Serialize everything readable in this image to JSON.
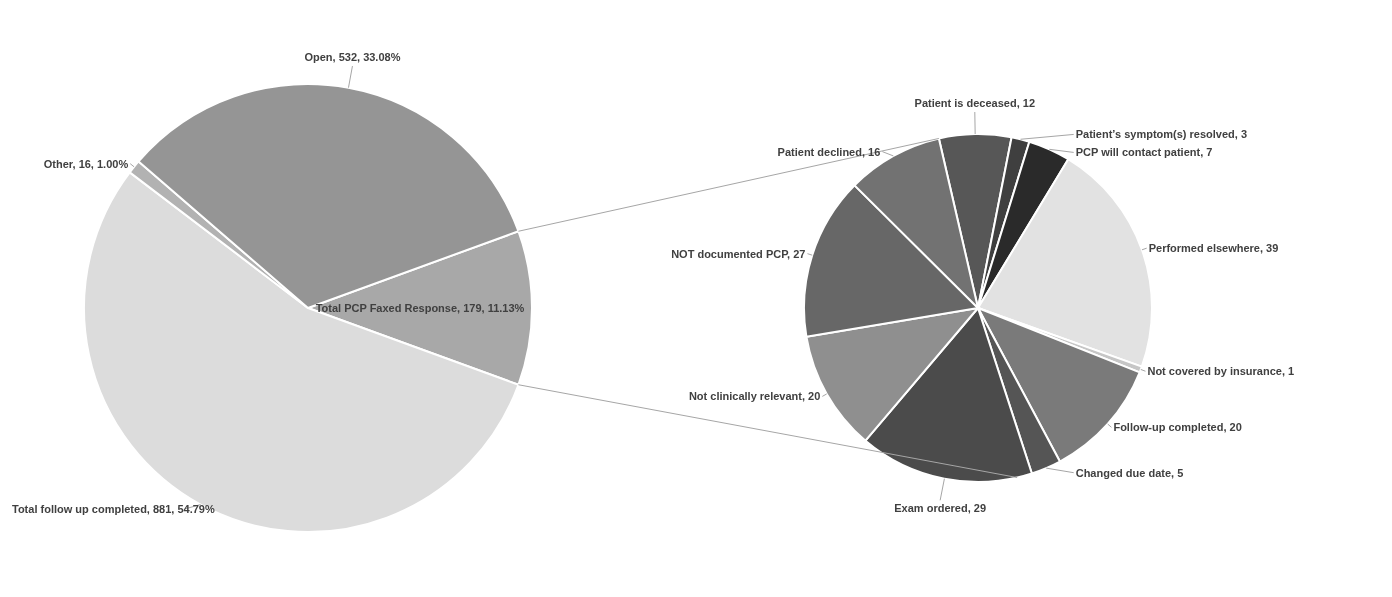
{
  "chart_data": [
    {
      "type": "pie",
      "categories": [
        "Total PCP Faxed Response",
        "Total follow up completed",
        "Other",
        "Open"
      ],
      "values": [
        179,
        881,
        16,
        532
      ],
      "colors": [
        "#a8a8a8",
        "#dcdcdc",
        "#b2b2b2",
        "#959595"
      ],
      "value_labels": [
        "179, 11.13%",
        "881, 54.79%",
        "16, 1.00%",
        "532, 33.08%"
      ]
    },
    {
      "type": "pie",
      "categories": [
        "Patient is deceased",
        "Patient’s symptom(s) resolved",
        "PCP will contact patient",
        "Performed elsewhere",
        "Not covered by insurance",
        "Follow-up completed",
        "Changed due date",
        "Exam ordered",
        "Not clinically relevant",
        "NOT documented PCP",
        "Patient declined"
      ],
      "values": [
        12,
        3,
        7,
        39,
        1,
        20,
        5,
        29,
        20,
        27,
        16
      ],
      "colors": [
        "#575757",
        "#3f3f3f",
        "#2a2a2a",
        "#e2e2e2",
        "#c6c6c6",
        "#7a7a7a",
        "#555555",
        "#4b4b4b",
        "#8f8f8f",
        "#676767",
        "#727272"
      ],
      "value_labels": [
        "12",
        "3",
        "7",
        "39",
        "1",
        "20",
        "5",
        "29",
        "20",
        "27",
        "16"
      ]
    }
  ]
}
